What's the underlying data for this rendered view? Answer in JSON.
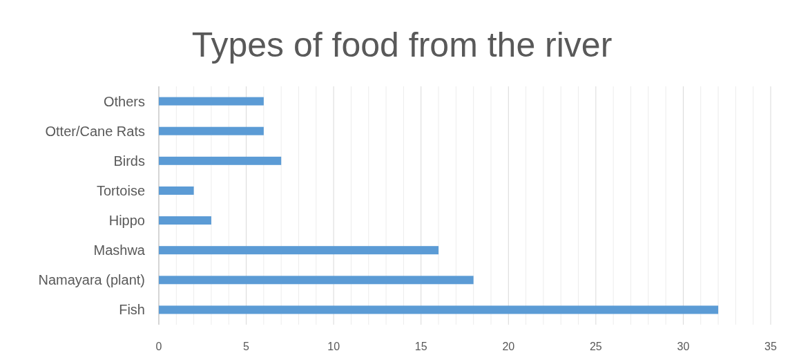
{
  "chart_data": {
    "type": "bar",
    "title": "Types of food from the river",
    "orientation": "horizontal",
    "categories": [
      "Others",
      "Otter/Cane Rats",
      "Birds",
      "Tortoise",
      "Hippo",
      "Mashwa",
      "Namayara (plant)",
      "Fish"
    ],
    "values": [
      6,
      6,
      7,
      2,
      3,
      16,
      18,
      32
    ],
    "color": "#5b9bd5",
    "xlim": [
      0,
      35
    ],
    "xticks": [
      0,
      {
        "value": 1,
        "label": null
      },
      {
        "value": 2,
        "label": null
      },
      {
        "value": 3,
        "label": null
      },
      {
        "value": 4,
        "label": null
      },
      5,
      {
        "value": 6,
        "label": null
      },
      {
        "value": 7,
        "label": null
      },
      {
        "value": 8,
        "label": null
      },
      {
        "value": 9,
        "label": null
      },
      10,
      {
        "value": 11,
        "label": null
      },
      {
        "value": 12,
        "label": null
      },
      {
        "value": 13,
        "label": null
      },
      {
        "value": 14,
        "label": null
      },
      15,
      {
        "value": 16,
        "label": null
      },
      {
        "value": 17,
        "label": null
      },
      {
        "value": 18,
        "label": null
      },
      {
        "value": 19,
        "label": null
      },
      20,
      {
        "value": 21,
        "label": null
      },
      {
        "value": 22,
        "label": null
      },
      {
        "value": 23,
        "label": null
      },
      {
        "value": 24,
        "label": null
      },
      25,
      {
        "value": 26,
        "label": null
      },
      {
        "value": 27,
        "label": null
      },
      {
        "value": 28,
        "label": null
      },
      {
        "value": 29,
        "label": null
      },
      30,
      {
        "value": 31,
        "label": null
      },
      {
        "value": 32,
        "label": null
      },
      {
        "value": 33,
        "label": null
      },
      {
        "value": 34,
        "label": null
      },
      35
    ],
    "grid": "x"
  }
}
